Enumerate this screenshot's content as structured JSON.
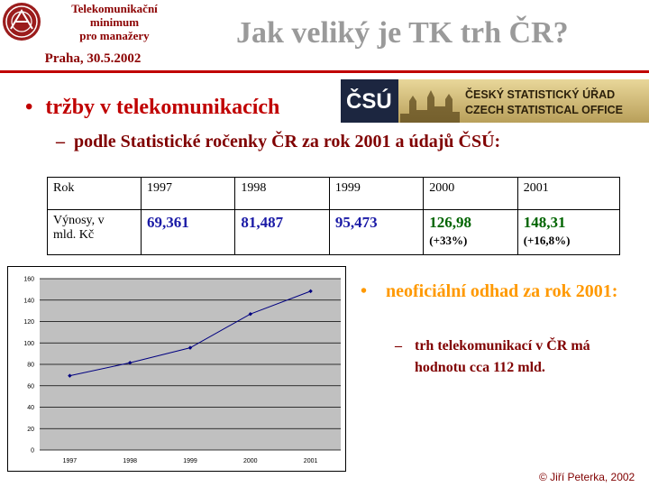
{
  "header": {
    "line1": "Telekomunikační",
    "line2": "minimum",
    "line3": "pro manažery",
    "date": "Praha, 30.5.2002",
    "title": "Jak veliký je TK trh ČR?"
  },
  "csu_logo": {
    "mark": "ČSÚ",
    "line1": "ČESKÝ STATISTICKÝ ÚŘAD",
    "line2": "CZECH STATISTICAL OFFICE"
  },
  "bullets": {
    "b1": "tržby v telekomunikacích",
    "b2": "podle Statistické ročenky ČR za rok 2001 a údajů ČSÚ:",
    "b3": "neoficiální odhad za rok 2001:",
    "b4": "trh telekomunikací v ČR má hodnotu cca 112 mld."
  },
  "bullet_glyphs": {
    "dot": "•",
    "dash": "–"
  },
  "table": {
    "row_header": "Rok",
    "years": [
      "1997",
      "1998",
      "1999",
      "2000",
      "2001"
    ],
    "value_label_line1": "Výnosy, v",
    "value_label_line2": "mld. Kč",
    "values": [
      "69,361",
      "81,487",
      "95,473",
      "126,98",
      "148,31"
    ],
    "notes": [
      "",
      "",
      "",
      "(+33%)",
      "(+16,8%)"
    ]
  },
  "chart_data": {
    "type": "line",
    "categories": [
      "1997",
      "1998",
      "1999",
      "2000",
      "2001"
    ],
    "series": [
      {
        "values": [
          69.361,
          81.487,
          95.473,
          126.98,
          148.31
        ]
      }
    ],
    "yticks": [
      "0",
      "20",
      "40",
      "60",
      "80",
      "100",
      "120",
      "140",
      "160"
    ],
    "yticks_note": "top tick printed as 140 in the original",
    "ylim": [
      0,
      160
    ],
    "grid": true,
    "colors": {
      "line": "#000080",
      "plot_bg": "#c0c0c0"
    }
  },
  "footer": {
    "copyright": "© Jiří Peterka, 2002"
  },
  "colors": {
    "title": "#9a9a9a",
    "accent_red": "#c00000",
    "orange": "#ff9900",
    "maroon": "#800000"
  }
}
